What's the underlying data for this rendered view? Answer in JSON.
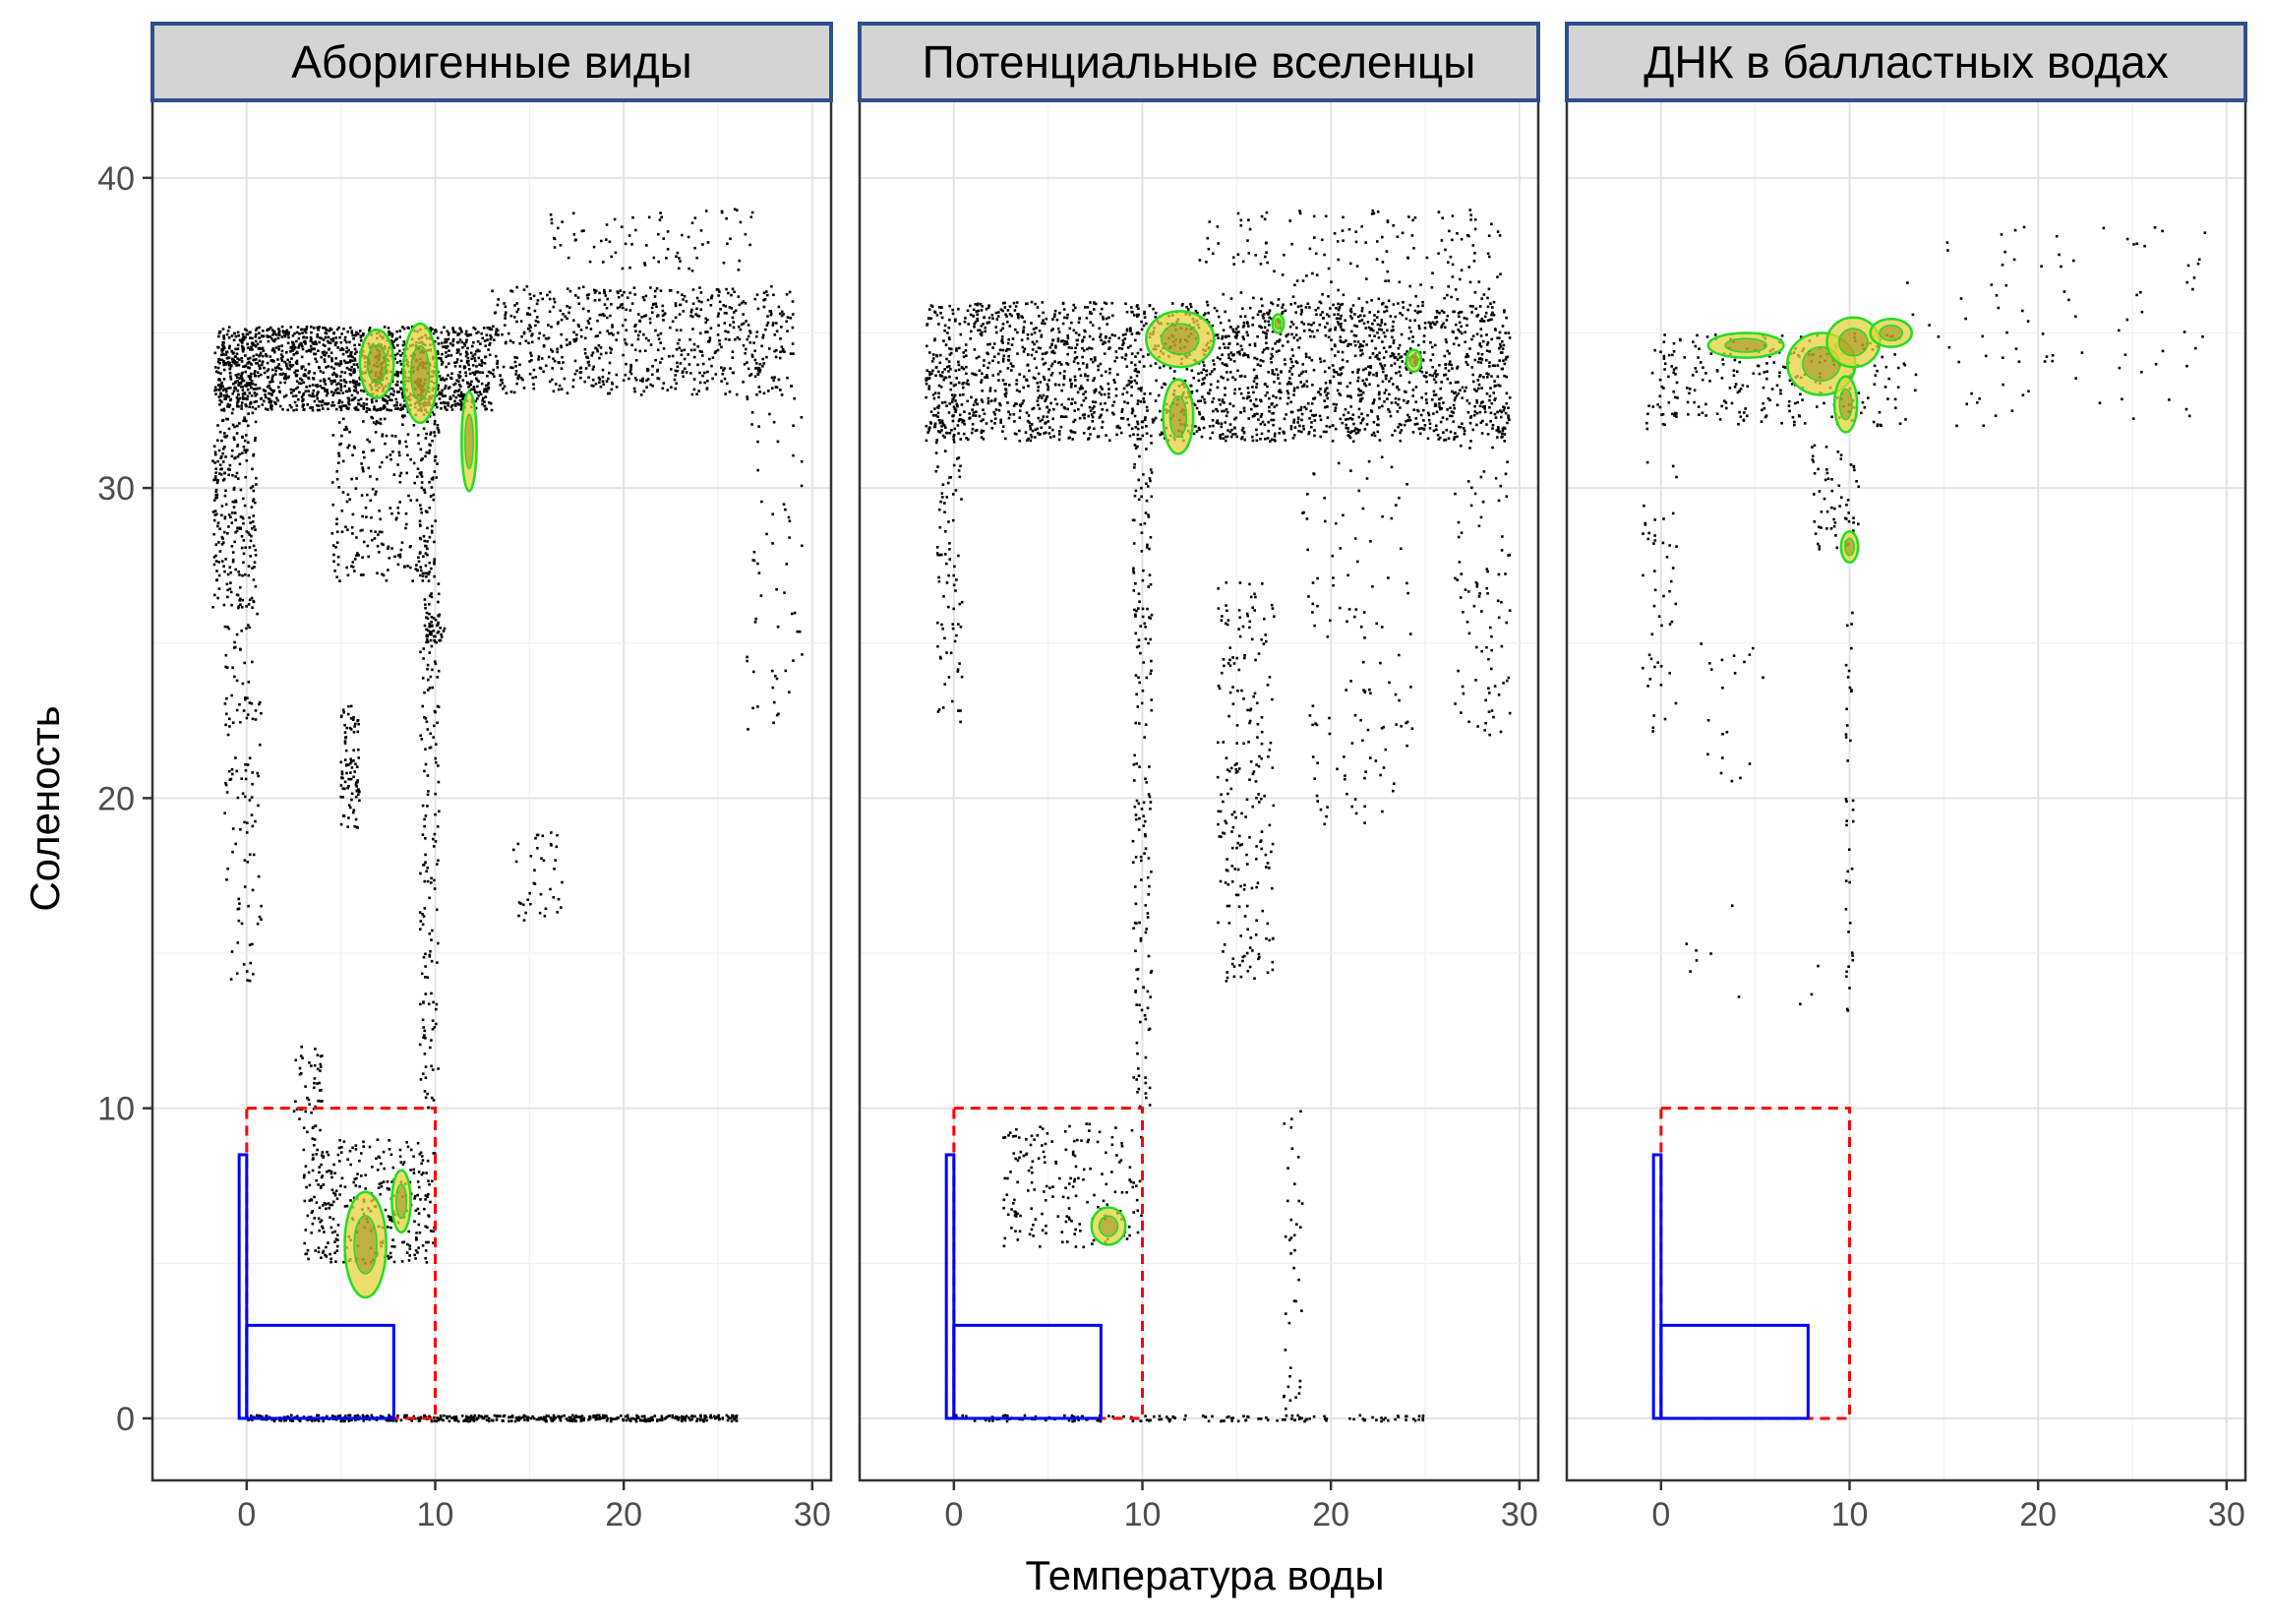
{
  "chart_data": {
    "type": "scatter",
    "xlabel": "Температура воды",
    "ylabel": "Соленость",
    "xlim": [
      -5,
      31
    ],
    "ylim": [
      -2,
      42.5
    ],
    "x_ticks": [
      0,
      10,
      20,
      30
    ],
    "y_ticks": [
      0,
      10,
      20,
      30,
      40
    ],
    "grid": true,
    "point_color": "#000000",
    "density_fill_color": "#e6d23c",
    "density_line_color": "#22dd22",
    "panels": [
      {
        "title": "Аборигенные виды",
        "bands": [
          {
            "x0": -1.5,
            "x1": 13,
            "y0": 32.5,
            "y1": 35.2,
            "n": 1500
          },
          {
            "x0": 13,
            "x1": 29,
            "y0": 33,
            "y1": 36.5,
            "n": 700
          },
          {
            "x0": -1.8,
            "x1": 0.5,
            "y0": 26,
            "y1": 35,
            "n": 350
          },
          {
            "x0": -1.2,
            "x1": 0.8,
            "y0": 14,
            "y1": 26,
            "n": 120
          },
          {
            "x0": 4.5,
            "x1": 10,
            "y0": 27,
            "y1": 34,
            "n": 300
          },
          {
            "x0": 5,
            "x1": 6,
            "y0": 19,
            "y1": 23,
            "n": 90
          },
          {
            "x0": 9.2,
            "x1": 10.2,
            "y0": 10,
            "y1": 33,
            "n": 220
          },
          {
            "x0": 9.5,
            "x1": 10.5,
            "y0": 25,
            "y1": 26,
            "n": 40
          },
          {
            "x0": 3,
            "x1": 10,
            "y0": 5,
            "y1": 9,
            "n": 330
          },
          {
            "x0": 2.5,
            "x1": 4,
            "y0": 9,
            "y1": 12,
            "n": 50
          },
          {
            "x0": 14,
            "x1": 17,
            "y0": 16,
            "y1": 19,
            "n": 40
          },
          {
            "x0": 16,
            "x1": 27,
            "y0": 37,
            "y1": 39,
            "n": 80
          },
          {
            "x0": 26.5,
            "x1": 29.5,
            "y0": 22,
            "y1": 33,
            "n": 60
          },
          {
            "x0": 0,
            "x1": 26,
            "y0": -0.1,
            "y1": 0.1,
            "n": 500
          }
        ],
        "density": [
          {
            "cx": 6.9,
            "cy": 34.0,
            "rx": 0.9,
            "ry": 1.1
          },
          {
            "cx": 9.2,
            "cy": 33.7,
            "rx": 0.9,
            "ry": 1.6
          },
          {
            "cx": 11.8,
            "cy": 31.5,
            "rx": 0.4,
            "ry": 1.6
          },
          {
            "cx": 6.3,
            "cy": 5.6,
            "rx": 1.1,
            "ry": 1.7
          },
          {
            "cx": 8.2,
            "cy": 7.0,
            "rx": 0.5,
            "ry": 1.0
          }
        ]
      },
      {
        "title": "Потенциальные вселенцы",
        "bands": [
          {
            "x0": -1.5,
            "x1": 29.5,
            "y0": 31.5,
            "y1": 36,
            "n": 2400
          },
          {
            "x0": 13,
            "x1": 29,
            "y0": 36,
            "y1": 39,
            "n": 160
          },
          {
            "x0": -1,
            "x1": 0.5,
            "y0": 22,
            "y1": 33,
            "n": 100
          },
          {
            "x0": 9.5,
            "x1": 10.5,
            "y0": 10,
            "y1": 32,
            "n": 180
          },
          {
            "x0": 14,
            "x1": 17,
            "y0": 14,
            "y1": 27,
            "n": 220
          },
          {
            "x0": 18.5,
            "x1": 24.5,
            "y0": 19,
            "y1": 31,
            "n": 120
          },
          {
            "x0": 26.5,
            "x1": 29.5,
            "y0": 22,
            "y1": 32,
            "n": 90
          },
          {
            "x0": 2.5,
            "x1": 10,
            "y0": 5.5,
            "y1": 9.5,
            "n": 180
          },
          {
            "x0": 17.5,
            "x1": 18.5,
            "y0": 0,
            "y1": 10,
            "n": 40
          },
          {
            "x0": 0,
            "x1": 25,
            "y0": -0.1,
            "y1": 0.1,
            "n": 150
          }
        ],
        "density": [
          {
            "cx": 12.0,
            "cy": 34.8,
            "rx": 1.8,
            "ry": 0.9
          },
          {
            "cx": 11.9,
            "cy": 32.3,
            "rx": 0.8,
            "ry": 1.2
          },
          {
            "cx": 17.2,
            "cy": 35.3,
            "rx": 0.3,
            "ry": 0.3
          },
          {
            "cx": 24.4,
            "cy": 34.1,
            "rx": 0.4,
            "ry": 0.35
          },
          {
            "cx": 8.2,
            "cy": 6.2,
            "rx": 0.9,
            "ry": 0.6
          }
        ]
      },
      {
        "title": "ДНК в балластных водах",
        "bands": [
          {
            "x0": -0.5,
            "x1": 13,
            "y0": 32,
            "y1": 35,
            "n": 280
          },
          {
            "x0": 13,
            "x1": 29,
            "y0": 32,
            "y1": 38.5,
            "n": 90
          },
          {
            "x0": -1,
            "x1": 1,
            "y0": 22,
            "y1": 34,
            "n": 60
          },
          {
            "x0": 8,
            "x1": 10.5,
            "y0": 28,
            "y1": 31.5,
            "n": 60
          },
          {
            "x0": 9.8,
            "x1": 10.2,
            "y0": 13,
            "y1": 26,
            "n": 40
          },
          {
            "x0": 2,
            "x1": 5.5,
            "y0": 20,
            "y1": 25,
            "n": 20
          },
          {
            "x0": 0,
            "x1": 9,
            "y0": 13,
            "y1": 17,
            "n": 10
          }
        ],
        "density": [
          {
            "cx": 4.5,
            "cy": 34.6,
            "rx": 2.0,
            "ry": 0.4
          },
          {
            "cx": 8.5,
            "cy": 34.0,
            "rx": 1.8,
            "ry": 1.0
          },
          {
            "cx": 10.2,
            "cy": 34.7,
            "rx": 1.4,
            "ry": 0.8
          },
          {
            "cx": 12.2,
            "cy": 35.0,
            "rx": 1.1,
            "ry": 0.45
          },
          {
            "cx": 9.8,
            "cy": 32.7,
            "rx": 0.6,
            "ry": 0.9
          },
          {
            "cx": 10.0,
            "cy": 28.1,
            "rx": 0.45,
            "ry": 0.5
          }
        ]
      }
    ],
    "reference_boxes": [
      {
        "style": "red-dashed",
        "x": [
          0,
          10
        ],
        "y": [
          0,
          10
        ]
      },
      {
        "style": "blue-solid",
        "x": [
          0,
          7.8
        ],
        "y": [
          0,
          3
        ]
      },
      {
        "style": "blue-solid",
        "x": [
          -0.4,
          0
        ],
        "y": [
          0,
          8.5
        ]
      }
    ]
  }
}
